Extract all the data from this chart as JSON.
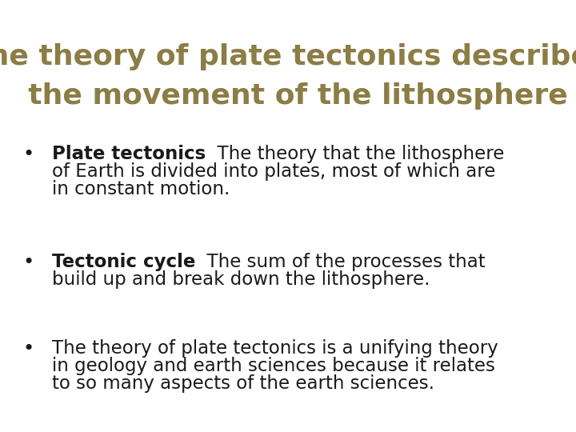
{
  "background_color": "#ffffff",
  "title_line1": "The theory of plate tectonics describes",
  "title_line2": "  the movement of the lithosphere",
  "title_color": "#8B7D45",
  "title_fontsize": 26,
  "bullet_color": "#1a1a1a",
  "bullet_fontsize": 16.5,
  "bullet1_bold": "Plate tectonics",
  "bullet1_normal": "  The theory that the lithosphere\nof Earth is divided into plates, most of which are\nin constant motion.",
  "bullet2_bold": "Tectonic cycle",
  "bullet2_normal": "  The sum of the processes that\nbuild up and break down the lithosphere.",
  "bullet3_normal": "The theory of plate tectonics is a unifying theory\nin geology and earth sciences because it relates\nto so many aspects of the earth sciences.",
  "bullet_symbol": "•"
}
